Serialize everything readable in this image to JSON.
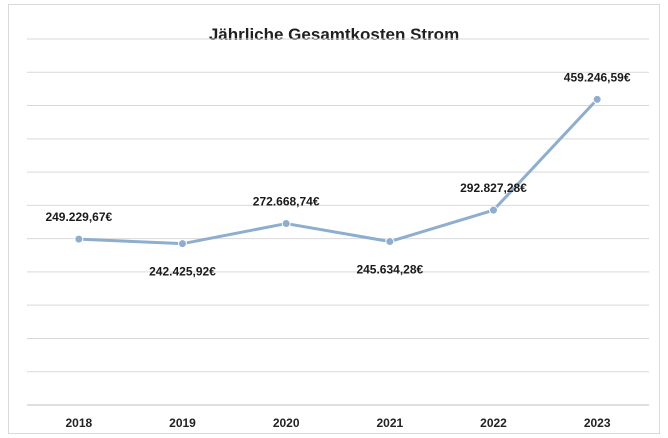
{
  "chart_data": {
    "type": "line",
    "title": "Jährliche Gesamtkosten Strom",
    "categories": [
      "2018",
      "2019",
      "2020",
      "2021",
      "2022",
      "2023"
    ],
    "series": [
      {
        "values": [
          249229.67,
          242425.92,
          272668.74,
          245634.28,
          292827.28,
          459246.59
        ],
        "labels": [
          "249.229,67€",
          "242.425,92€",
          "272.668,74€",
          "245.634,28€",
          "292.827,28€",
          "459.246,59€"
        ],
        "color": "#8eaed0"
      }
    ],
    "ylim": [
      0,
      550000
    ],
    "grid": true,
    "legend": "none",
    "xlabel": "",
    "ylabel": ""
  }
}
